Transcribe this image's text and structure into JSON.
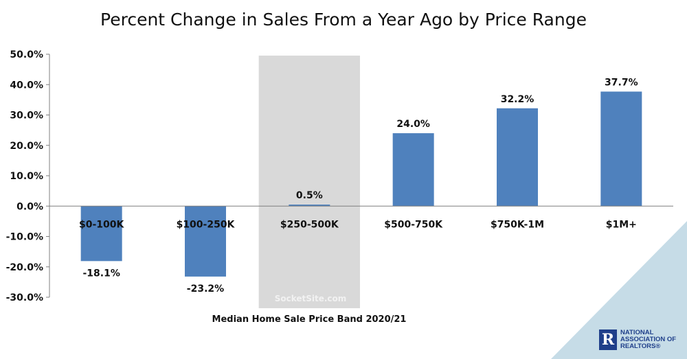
{
  "chart_data": {
    "type": "bar",
    "title": "Percent Change in Sales From a Year Ago by Price Range",
    "xlabel": "Median Home Sale Price Band 2020/21",
    "ylabel": "",
    "categories": [
      "$0-100K",
      "$100-250K",
      "$250-500K",
      "$500-750K",
      "$750K-1M",
      "$1M+"
    ],
    "values": [
      -18.1,
      -23.2,
      0.5,
      24.0,
      32.2,
      37.7
    ],
    "data_labels": [
      "-18.1%",
      "-23.2%",
      "0.5%",
      "24.0%",
      "32.2%",
      "37.7%"
    ],
    "y_ticks": [
      50,
      40,
      30,
      20,
      10,
      0,
      -10,
      -20,
      -30
    ],
    "y_tick_labels": [
      "50.0%",
      "40.0%",
      "30.0%",
      "20.0%",
      "10.0%",
      "0.0%",
      "-10.0%",
      "-20.0%",
      "-30.0%"
    ],
    "ylim": [
      -30,
      50
    ],
    "grid": false,
    "legend": "none",
    "highlighted_category": "$250-500K",
    "colors": {
      "bar": "#4f81bd",
      "highlight_band": "#d9d9d9",
      "axis": "#7f7f7f",
      "corner": "#c6dce7"
    }
  },
  "watermark": "SocketSite.com",
  "logo": {
    "mark": "R",
    "lines": [
      "NATIONAL",
      "ASSOCIATION OF",
      "REALTORS®"
    ]
  }
}
